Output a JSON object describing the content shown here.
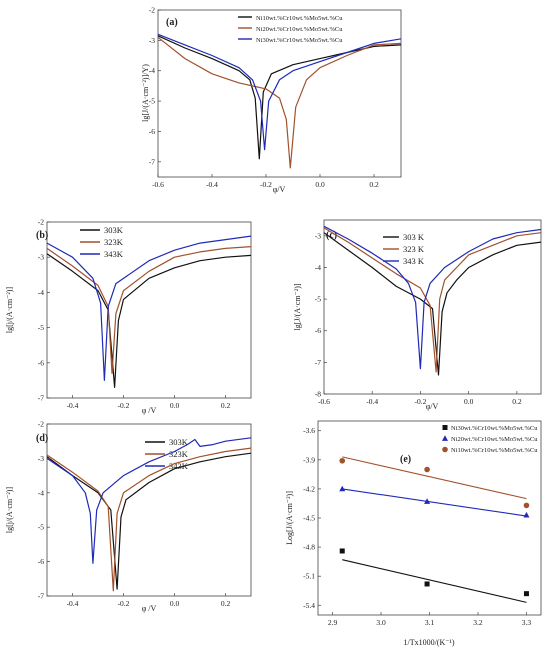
{
  "chart_data": [
    {
      "panel": "(a)",
      "type": "line",
      "xlabel": "φ/V",
      "ylabel": "lg[J/(A·cm⁻²)]/Y)",
      "xlim": [
        -0.6,
        0.3
      ],
      "ylim": [
        -7.5,
        -2
      ],
      "xticks": [
        -0.6,
        -0.4,
        -0.2,
        0.0,
        0.2
      ],
      "xtick_labels": [
        "-0.6",
        "-0.4",
        "-0.2",
        "0.0",
        "0.2"
      ],
      "yticks": [
        -7,
        -6,
        -5,
        -4,
        -3,
        -2
      ],
      "ytick_labels": [
        "-7",
        "-6",
        "-5",
        "-4",
        "-3",
        "-2"
      ],
      "legend_position": "top-right",
      "series": [
        {
          "name": "Ni10wt.%Cr10wt.%Mo5wt.%Cu",
          "color": "#111111",
          "x": [
            -0.6,
            -0.5,
            -0.4,
            -0.3,
            -0.26,
            -0.24,
            -0.225,
            -0.21,
            -0.18,
            -0.1,
            0,
            0.1,
            0.2,
            0.3
          ],
          "y": [
            -2.85,
            -3.25,
            -3.6,
            -4.0,
            -4.3,
            -4.9,
            -6.9,
            -4.7,
            -4.1,
            -3.8,
            -3.6,
            -3.4,
            -3.2,
            -3.15
          ]
        },
        {
          "name": "Ni20wt.%Cr10wt.%Mo5wt.%Cu",
          "color": "#a0522d",
          "x": [
            -0.6,
            -0.5,
            -0.4,
            -0.3,
            -0.2,
            -0.15,
            -0.125,
            -0.11,
            -0.09,
            -0.05,
            0,
            0.1,
            0.2,
            0.3
          ],
          "y": [
            -2.9,
            -3.6,
            -4.1,
            -4.4,
            -4.6,
            -4.9,
            -5.6,
            -7.2,
            -5.2,
            -4.3,
            -3.9,
            -3.5,
            -3.15,
            -3.1
          ]
        },
        {
          "name": "Ni30wt.%Cr10wt.%Mo5wt.%Cu",
          "color": "#1f2ab8",
          "x": [
            -0.6,
            -0.5,
            -0.4,
            -0.3,
            -0.25,
            -0.22,
            -0.205,
            -0.19,
            -0.15,
            -0.1,
            0,
            0.1,
            0.2,
            0.3
          ],
          "y": [
            -2.8,
            -3.15,
            -3.5,
            -3.9,
            -4.3,
            -5.0,
            -6.6,
            -5.0,
            -4.3,
            -4.0,
            -3.7,
            -3.4,
            -3.1,
            -2.95
          ]
        }
      ]
    },
    {
      "panel": "(b)",
      "type": "line",
      "xlabel": "φ /V",
      "ylabel": "lg[j/(A·cm⁻²)]",
      "xlim": [
        -0.5,
        0.3
      ],
      "ylim": [
        -7,
        -2
      ],
      "xticks": [
        -0.4,
        -0.2,
        0.0,
        0.2
      ],
      "xtick_labels": [
        "-0.4",
        "-0.2",
        "0.0",
        "0.2"
      ],
      "yticks": [
        -7,
        -6,
        -5,
        -4,
        -3,
        -2
      ],
      "ytick_labels": [
        "-7",
        "-6",
        "-5",
        "-4",
        "-3",
        "-2"
      ],
      "legend_position": "top-left",
      "series": [
        {
          "name": "303K",
          "color": "#111111",
          "x": [
            -0.5,
            -0.4,
            -0.3,
            -0.26,
            -0.235,
            -0.22,
            -0.2,
            -0.1,
            0,
            0.1,
            0.2,
            0.3
          ],
          "y": [
            -2.9,
            -3.4,
            -3.95,
            -4.5,
            -6.7,
            -4.8,
            -4.2,
            -3.6,
            -3.3,
            -3.1,
            -3.0,
            -2.95
          ]
        },
        {
          "name": "323K",
          "color": "#a0522d",
          "x": [
            -0.5,
            -0.4,
            -0.3,
            -0.26,
            -0.245,
            -0.23,
            -0.2,
            -0.1,
            0,
            0.1,
            0.2,
            0.3
          ],
          "y": [
            -2.75,
            -3.25,
            -3.8,
            -4.4,
            -6.3,
            -4.6,
            -3.95,
            -3.4,
            -3.0,
            -2.85,
            -2.75,
            -2.7
          ]
        },
        {
          "name": "343K",
          "color": "#1f2ab8",
          "x": [
            -0.5,
            -0.4,
            -0.32,
            -0.29,
            -0.275,
            -0.26,
            -0.23,
            -0.1,
            0,
            0.1,
            0.2,
            0.3
          ],
          "y": [
            -2.6,
            -3.0,
            -3.6,
            -4.3,
            -6.5,
            -4.4,
            -3.75,
            -3.1,
            -2.8,
            -2.6,
            -2.5,
            -2.4
          ]
        }
      ]
    },
    {
      "panel": "(c)",
      "type": "line",
      "xlabel": "φ/V",
      "ylabel": "lg[J/(A·cm⁻²)]",
      "xlim": [
        -0.6,
        0.3
      ],
      "ylim": [
        -8,
        -2.5
      ],
      "xticks": [
        -0.6,
        -0.4,
        -0.2,
        0.0,
        0.2
      ],
      "xtick_labels": [
        "-0.6",
        "-0.4",
        "-0.2",
        "0.0",
        "0.2"
      ],
      "yticks": [
        -8,
        -7,
        -6,
        -5,
        -4,
        -3
      ],
      "ytick_labels": [
        "-8",
        "-7",
        "-6",
        "-5",
        "-4",
        "-3"
      ],
      "legend_position": "top-center",
      "series": [
        {
          "name": "303 K",
          "color": "#111111",
          "x": [
            -0.6,
            -0.5,
            -0.4,
            -0.3,
            -0.2,
            -0.15,
            -0.125,
            -0.11,
            -0.09,
            -0.05,
            0,
            0.1,
            0.2,
            0.3
          ],
          "y": [
            -2.9,
            -3.45,
            -4.0,
            -4.6,
            -5.0,
            -5.3,
            -7.4,
            -5.4,
            -4.8,
            -4.4,
            -4.0,
            -3.6,
            -3.3,
            -3.2
          ]
        },
        {
          "name": "323 K",
          "color": "#a0522d",
          "x": [
            -0.6,
            -0.5,
            -0.4,
            -0.3,
            -0.2,
            -0.16,
            -0.135,
            -0.12,
            -0.1,
            -0.05,
            0,
            0.1,
            0.2,
            0.3
          ],
          "y": [
            -2.75,
            -3.2,
            -3.7,
            -4.2,
            -4.65,
            -5.2,
            -7.3,
            -5.0,
            -4.4,
            -4.0,
            -3.6,
            -3.3,
            -3.0,
            -2.9
          ]
        },
        {
          "name": "343 K",
          "color": "#1f2ab8",
          "x": [
            -0.6,
            -0.5,
            -0.4,
            -0.3,
            -0.25,
            -0.22,
            -0.2,
            -0.185,
            -0.16,
            -0.1,
            0,
            0.1,
            0.2,
            0.3
          ],
          "y": [
            -2.7,
            -3.1,
            -3.55,
            -4.05,
            -4.5,
            -5.1,
            -7.2,
            -5.1,
            -4.5,
            -4.0,
            -3.5,
            -3.1,
            -2.9,
            -2.8
          ]
        }
      ]
    },
    {
      "panel": "(d)",
      "type": "line",
      "xlabel": "φ /V",
      "ylabel": "lg[j/(A·cm⁻²)]",
      "xlim": [
        -0.5,
        0.3
      ],
      "ylim": [
        -7,
        -2
      ],
      "xticks": [
        -0.4,
        -0.2,
        0.0,
        0.2
      ],
      "xtick_labels": [
        "-0.4",
        "-0.2",
        "0.0",
        "0.2"
      ],
      "yticks": [
        -7,
        -6,
        -5,
        -4,
        -3,
        -2
      ],
      "ytick_labels": [
        "-7",
        "-6",
        "-5",
        "-4",
        "-3",
        "-2"
      ],
      "legend_position": "top-right",
      "series": [
        {
          "name": "303K",
          "color": "#111111",
          "x": [
            -0.5,
            -0.4,
            -0.3,
            -0.25,
            -0.225,
            -0.21,
            -0.19,
            -0.1,
            0,
            0.1,
            0.2,
            0.3
          ],
          "y": [
            -2.95,
            -3.5,
            -4.0,
            -4.5,
            -6.8,
            -4.7,
            -4.2,
            -3.7,
            -3.3,
            -3.1,
            -2.95,
            -2.85
          ]
        },
        {
          "name": "323K",
          "color": "#a0522d",
          "x": [
            -0.5,
            -0.4,
            -0.3,
            -0.26,
            -0.24,
            -0.225,
            -0.2,
            -0.1,
            0,
            0.1,
            0.2,
            0.3
          ],
          "y": [
            -2.9,
            -3.4,
            -3.95,
            -4.4,
            -6.85,
            -4.6,
            -4.0,
            -3.5,
            -3.15,
            -2.95,
            -2.8,
            -2.7
          ]
        },
        {
          "name": "343K",
          "color": "#1f2ab8",
          "x": [
            -0.5,
            -0.4,
            -0.35,
            -0.33,
            -0.32,
            -0.305,
            -0.28,
            -0.2,
            -0.1,
            0,
            0.05,
            0.08,
            0.1,
            0.15,
            0.2,
            0.3
          ],
          "y": [
            -3.0,
            -3.5,
            -4.0,
            -4.6,
            -6.05,
            -4.5,
            -4.0,
            -3.5,
            -3.1,
            -2.8,
            -2.6,
            -2.45,
            -2.65,
            -2.6,
            -2.5,
            -2.4
          ]
        }
      ]
    },
    {
      "panel": "(e)",
      "type": "scatter",
      "xlabel": "1/Tx1000/(K⁻¹)",
      "ylabel": "Log[J/(A·cm⁻²)]",
      "xlim": [
        2.87,
        3.33
      ],
      "ylim": [
        -5.5,
        -3.5
      ],
      "xticks": [
        2.9,
        3.0,
        3.1,
        3.2,
        3.3
      ],
      "xtick_labels": [
        "2.9",
        "3.0",
        "3.1",
        "3.2",
        "3.3"
      ],
      "yticks": [
        -5.4,
        -5.1,
        -4.8,
        -4.5,
        -4.2,
        -3.9,
        -3.6
      ],
      "ytick_labels": [
        "-5.4",
        "-5.1",
        "-4.8",
        "-4.5",
        "-4.2",
        "-3.9",
        "-3.6"
      ],
      "legend_position": "top-right",
      "series": [
        {
          "name": "Ni30wt.%Cr10wt.%Mo5wt.%Cu",
          "color": "#111111",
          "marker": "square",
          "x": [
            2.92,
            3.095,
            3.3
          ],
          "y": [
            -4.84,
            -5.18,
            -5.28
          ],
          "fit": [
            [
              2.92,
              -4.93
            ],
            [
              3.3,
              -5.37
            ]
          ]
        },
        {
          "name": "Ni20wt.%Cr10wt.%Mo5wt.%Cu",
          "color": "#1f2ab8",
          "marker": "triangle",
          "x": [
            2.92,
            3.095,
            3.3
          ],
          "y": [
            -4.2,
            -4.33,
            -4.47
          ],
          "fit": [
            [
              2.92,
              -4.2
            ],
            [
              3.3,
              -4.48
            ]
          ]
        },
        {
          "name": "Ni10wt.%Cr10wt.%Mo5wt.%Cu",
          "color": "#a0522d",
          "marker": "circle",
          "x": [
            2.92,
            3.095,
            3.3
          ],
          "y": [
            -3.91,
            -4.0,
            -4.37
          ],
          "fit": [
            [
              2.92,
              -3.87
            ],
            [
              3.3,
              -4.3
            ]
          ]
        }
      ]
    }
  ]
}
